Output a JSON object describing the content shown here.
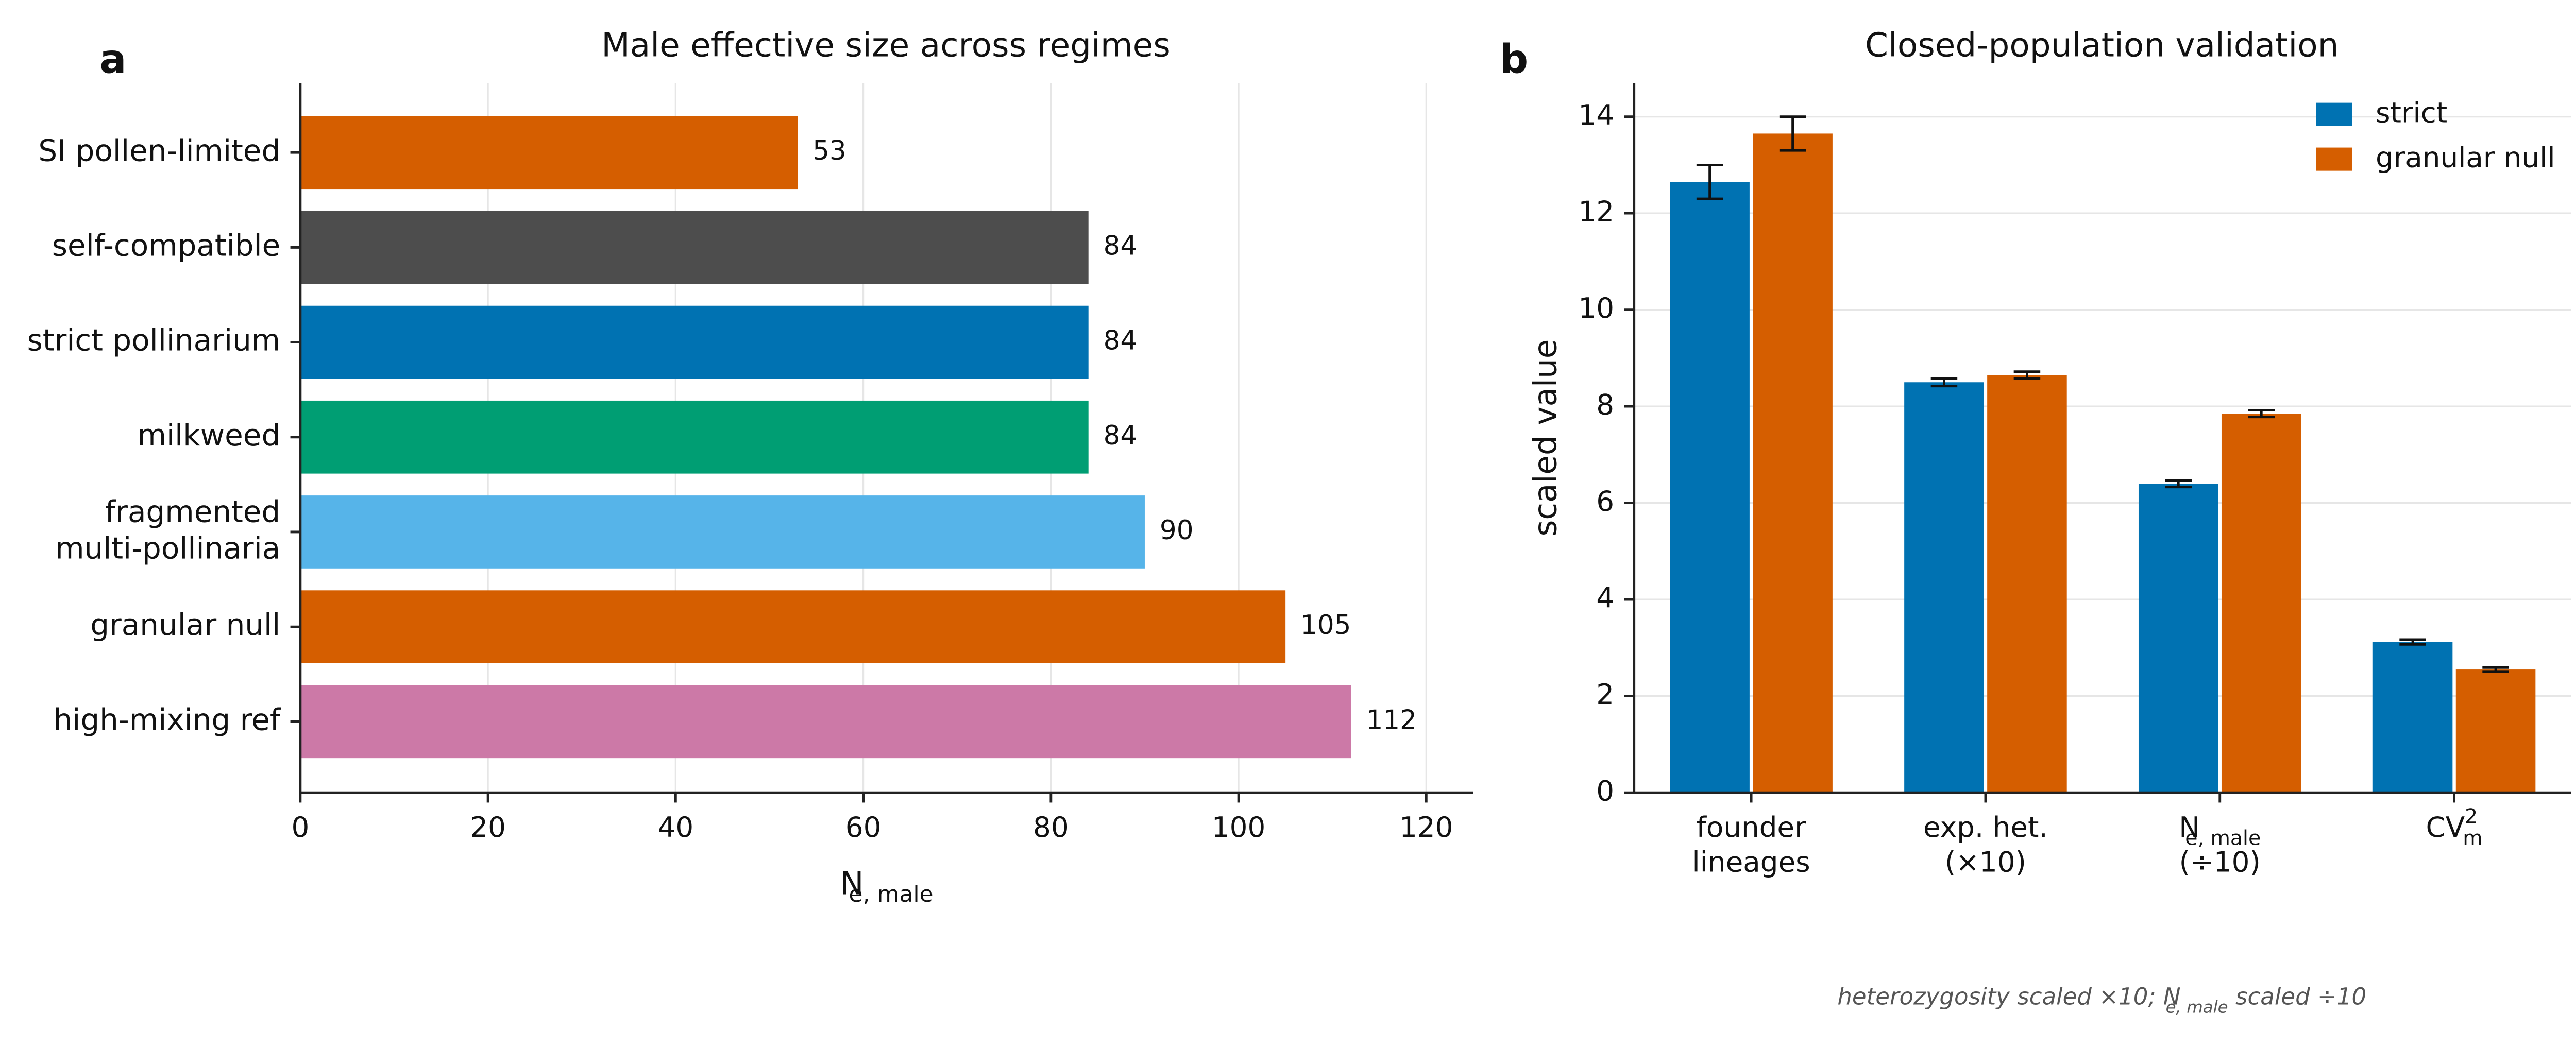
{
  "chart_data": [
    {
      "type": "barh",
      "panel_label": "a",
      "title": "Male effective size across regimes",
      "categories": [
        [
          "SI pollen-limited"
        ],
        [
          "self-compatible"
        ],
        [
          "strict pollinarium"
        ],
        [
          "milkweed"
        ],
        [
          "fragmented",
          "multi-pollinaria"
        ],
        [
          "granular null"
        ],
        [
          "high-mixing ref"
        ]
      ],
      "values": [
        53,
        84,
        84,
        84,
        90,
        105,
        112
      ],
      "colors": [
        "#d55e00",
        "#4d4d4d",
        "#0072b2",
        "#009e73",
        "#56b4e9",
        "#d55e00",
        "#cc79a7"
      ],
      "xlabel": [
        "N",
        {
          "sub": "e, male"
        }
      ],
      "xlim": [
        0,
        125
      ],
      "xticks": [
        0,
        20,
        40,
        60,
        80,
        100,
        120
      ],
      "grid": true
    },
    {
      "type": "bar",
      "panel_label": "b",
      "title": "Closed-population validation",
      "categories": [
        [
          [
            "founder"
          ],
          [
            "lineages"
          ]
        ],
        [
          [
            "exp. het."
          ],
          [
            "(×10)"
          ]
        ],
        [
          [
            "N",
            {
              "sub": "e, male"
            }
          ],
          [
            "(÷10)"
          ]
        ],
        [
          [
            "CV",
            {
              "sup": "2"
            },
            {
              "sub": "m"
            }
          ]
        ]
      ],
      "series": [
        {
          "name": "strict",
          "color": "#0072b2",
          "values": [
            12.65,
            8.5,
            6.4,
            3.12
          ],
          "errors": [
            0.35,
            0.08,
            0.07,
            0.05
          ]
        },
        {
          "name": "granular null",
          "color": "#d55e00",
          "values": [
            13.65,
            8.65,
            7.85,
            2.55
          ],
          "errors": [
            0.35,
            0.07,
            0.07,
            0.04
          ]
        }
      ],
      "ylabel": "scaled value",
      "ylim": [
        0,
        14.7
      ],
      "yticks": [
        0,
        2,
        4,
        6,
        8,
        10,
        12,
        14
      ],
      "grid": true,
      "legend": "upper right",
      "footnote": [
        "heterozygosity scaled ×10; N",
        {
          "sub": "e, male"
        },
        " scaled ÷10"
      ]
    }
  ]
}
